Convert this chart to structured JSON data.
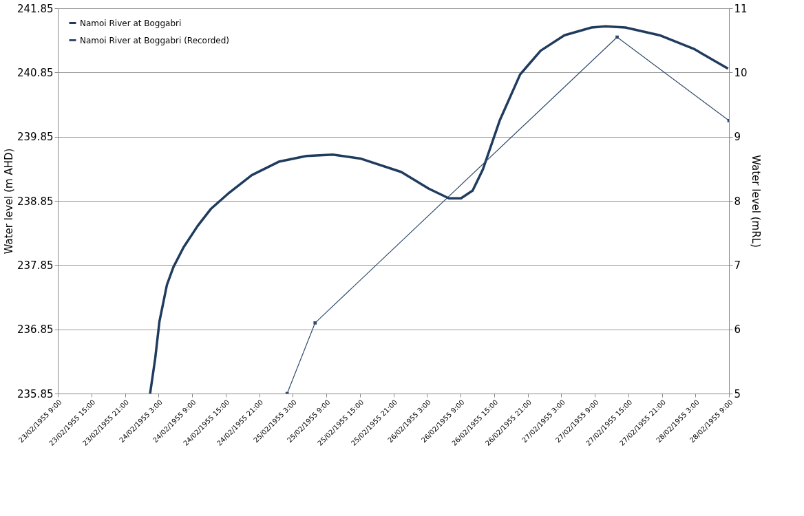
{
  "chart_data": {
    "type": "line",
    "ylabel": "Water level (m AHD)",
    "y2label": "Water level (mRL)",
    "xlim": [
      "1955-02-23T09:00",
      "1955-02-28T09:00"
    ],
    "xticks": [
      {
        "value": "1955-02-23T09:00",
        "label": "23/02/1955 9:00"
      },
      {
        "value": "1955-02-23T15:00",
        "label": "23/02/1955 15:00"
      },
      {
        "value": "1955-02-23T21:00",
        "label": "23/02/1955 21:00"
      },
      {
        "value": "1955-02-24T03:00",
        "label": "24/02/1955 3:00"
      },
      {
        "value": "1955-02-24T09:00",
        "label": "24/02/1955 9:00"
      },
      {
        "value": "1955-02-24T15:00",
        "label": "24/02/1955 15:00"
      },
      {
        "value": "1955-02-24T21:00",
        "label": "24/02/1955 21:00"
      },
      {
        "value": "1955-02-25T03:00",
        "label": "25/02/1955 3:00"
      },
      {
        "value": "1955-02-25T09:00",
        "label": "25/02/1955 9:00"
      },
      {
        "value": "1955-02-25T15:00",
        "label": "25/02/1955 15:00"
      },
      {
        "value": "1955-02-25T21:00",
        "label": "25/02/1955 21:00"
      },
      {
        "value": "1955-02-26T03:00",
        "label": "26/02/1955 3:00"
      },
      {
        "value": "1955-02-26T09:00",
        "label": "26/02/1955 9:00"
      },
      {
        "value": "1955-02-26T15:00",
        "label": "26/02/1955 15:00"
      },
      {
        "value": "1955-02-26T21:00",
        "label": "26/02/1955 21:00"
      },
      {
        "value": "1955-02-27T03:00",
        "label": "27/02/1955 3:00"
      },
      {
        "value": "1955-02-27T09:00",
        "label": "27/02/1955 9:00"
      },
      {
        "value": "1955-02-27T15:00",
        "label": "27/02/1955 15:00"
      },
      {
        "value": "1955-02-27T21:00",
        "label": "27/02/1955 21:00"
      },
      {
        "value": "1955-02-28T03:00",
        "label": "28/02/1955 3:00"
      },
      {
        "value": "1955-02-28T09:00",
        "label": "28/02/1955 9:00"
      }
    ],
    "ylim": [
      235.85,
      241.85
    ],
    "yticks": [
      235.85,
      236.85,
      237.85,
      238.85,
      239.85,
      240.85,
      241.85
    ],
    "y2lim": [
      5,
      11
    ],
    "y2ticks": [
      5,
      6,
      7,
      8,
      9,
      10,
      11
    ],
    "grid": "y",
    "legend": "top left",
    "series": [
      {
        "name": "Namoi River at Boggabri",
        "color": "#1f3b5e",
        "marker": "none",
        "line_style": "solid",
        "x": [
          "1955-02-24T01:30",
          "1955-02-24T02:25",
          "1955-02-24T03:10",
          "1955-02-24T04:30",
          "1955-02-24T05:40",
          "1955-02-24T07:30",
          "1955-02-24T10:00",
          "1955-02-24T12:25",
          "1955-02-24T15:25",
          "1955-02-24T19:40",
          "1955-02-25T00:30",
          "1955-02-25T05:25",
          "1955-02-25T10:10",
          "1955-02-25T15:05",
          "1955-02-25T22:25",
          "1955-02-26T03:20",
          "1955-02-26T06:55",
          "1955-02-26T09:05",
          "1955-02-26T11:10",
          "1955-02-26T13:00",
          "1955-02-26T16:00",
          "1955-02-26T19:40",
          "1955-02-26T23:20",
          "1955-02-27T03:35",
          "1955-02-27T08:25",
          "1955-02-27T10:55",
          "1955-02-27T14:30",
          "1955-02-27T20:35",
          "1955-02-28T02:40",
          "1955-02-28T08:50"
        ],
        "values": [
          235.85,
          236.4,
          236.97,
          237.54,
          237.82,
          238.13,
          238.46,
          238.73,
          238.96,
          239.25,
          239.46,
          239.55,
          239.57,
          239.51,
          239.3,
          239.04,
          238.89,
          238.89,
          239.01,
          239.34,
          240.1,
          240.82,
          241.19,
          241.43,
          241.55,
          241.57,
          241.55,
          241.43,
          241.22,
          240.91
        ]
      },
      {
        "name": "Namoi River at Boggabri (Recorded)",
        "color": "#2f4b6c",
        "marker": "square",
        "line_style": "solid",
        "axis": "y2",
        "x": [
          "1955-02-25T02:00",
          "1955-02-25T07:00",
          "1955-02-27T13:00",
          "1955-02-28T09:00"
        ],
        "values": [
          5.0,
          6.1,
          10.55,
          9.25
        ]
      }
    ]
  }
}
